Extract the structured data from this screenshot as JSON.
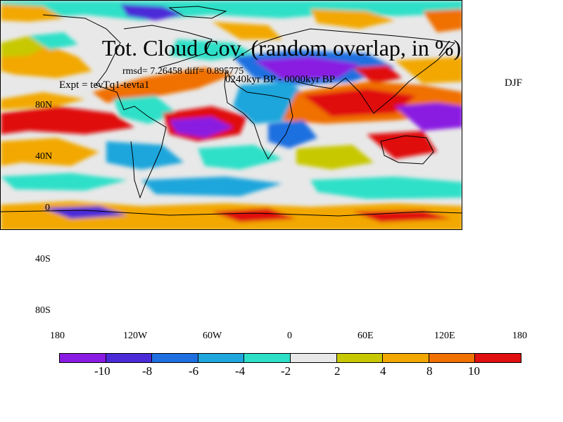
{
  "title": "Tot. Cloud Cov. (random overlap, in %)",
  "stats": "rmsd= 7.26458 diff= 0.895775",
  "experiment": "Expt = tevTq1-tevta1",
  "period": "0240kyr BP - 0000kyr BP",
  "season": "DJF",
  "lat_labels": [
    "80N",
    "40N",
    "0",
    "40S",
    "80S"
  ],
  "lon_labels": [
    "180",
    "120W",
    "60W",
    "0",
    "60E",
    "120E",
    "180"
  ],
  "colorbar": {
    "colors": [
      "#8a1be2",
      "#4b2bd8",
      "#1f6fe0",
      "#1fa6dc",
      "#2ee0c8",
      "#e8e8e8",
      "#c8c800",
      "#f2a800",
      "#f07000",
      "#e01010"
    ],
    "labels": [
      "-10",
      "-8",
      "-6",
      "-4",
      "-2",
      "2",
      "4",
      "8",
      "10"
    ]
  }
}
